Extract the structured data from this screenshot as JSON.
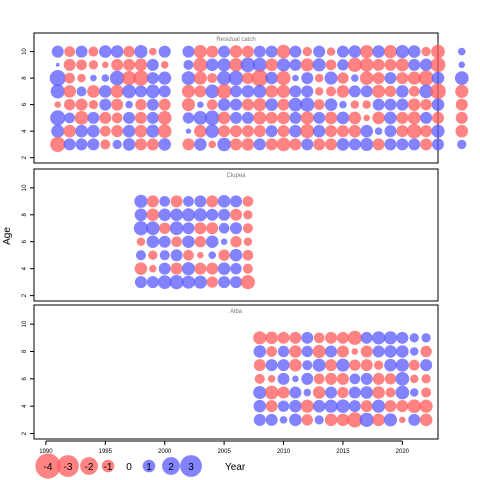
{
  "chart_data": {
    "type": "scatter",
    "xlabel": "Year",
    "ylabel": "Age",
    "x_ticks": [
      1990,
      1995,
      2000,
      2005,
      2010,
      2015,
      2020
    ],
    "y_ticks": [
      2,
      4,
      6,
      8,
      10
    ],
    "xlim": [
      1989,
      2023
    ],
    "ylim": [
      1.6,
      11.4
    ],
    "colors": {
      "negative": "#ff5a5a",
      "positive": "#5a5aff"
    },
    "legend": {
      "labels": [
        "-4",
        "-3",
        "-2",
        "-1",
        "0",
        "1",
        "2",
        "3"
      ],
      "values": [
        -4,
        -3,
        -2,
        -1,
        0,
        1,
        2,
        3
      ],
      "title": "Year"
    },
    "panels": [
      {
        "title": "Residual catch",
        "x_start": 1990,
        "ages": [
          10,
          9,
          8,
          7,
          6,
          5,
          4,
          3
        ],
        "values": [
          [
            0,
            1,
            -0.8,
            1,
            -0.7,
            1.1,
            1.1,
            -0.9,
            1.2,
            -0.4,
            1,
            0,
            1,
            -1.2,
            -1,
            1,
            -1.1,
            -1,
            1,
            1,
            -1.3,
            1,
            -0.6,
            1,
            -0.5,
            1,
            1.1,
            -1.2,
            1.1,
            -1.2,
            1.2,
            1.1,
            -0.6,
            -1.3,
            0,
            0.4
          ],
          [
            0,
            0.1,
            -1,
            -0.8,
            -0.6,
            -0.3,
            -1,
            -1,
            -1.1,
            1,
            -0.4,
            0,
            0.7,
            -1.4,
            1.1,
            1.2,
            -1.3,
            1.5,
            1.4,
            -1.1,
            1.2,
            1,
            -1.2,
            1.2,
            -0.8,
            0.9,
            -1.4,
            -1.3,
            -1,
            -1,
            -1.2,
            1,
            1.1,
            -1.5,
            0,
            0.3
          ],
          [
            0,
            1.8,
            -0.8,
            -0.5,
            0.3,
            0.4,
            1.5,
            -1.4,
            -1.6,
            1,
            1.2,
            0,
            1.3,
            -1.2,
            -0.7,
            1.4,
            1.5,
            -1,
            -1.9,
            1.1,
            -1.4,
            0.3,
            1,
            -0.5,
            1.2,
            -0.9,
            0.4,
            -1.3,
            -1,
            1,
            -1,
            -1.2,
            -1.6,
            1.1,
            0,
            1.3
          ],
          [
            0,
            1.4,
            -1.1,
            0.7,
            -1.1,
            1.1,
            -1.2,
            1.3,
            1,
            1.3,
            1,
            0,
            -1.2,
            -1,
            1.3,
            -1.5,
            1,
            1.1,
            1.2,
            -1.1,
            -1.2,
            1,
            1,
            -0.5,
            -0.7,
            -1.1,
            1,
            1,
            -1.2,
            -0.9,
            1.1,
            -0.8,
            1.3,
            -1.7,
            0,
            -1.2
          ],
          [
            0,
            -0.3,
            -0.9,
            -1,
            -0.6,
            1,
            -1,
            0.4,
            -0.9,
            1,
            -1,
            0,
            -1.2,
            0.3,
            -0.8,
            1.1,
            1,
            -1,
            -1.2,
            1.1,
            -1,
            1.3,
            1.4,
            -0.8,
            1.1,
            0.4,
            -0.5,
            -0.5,
            1,
            1,
            1,
            -1.1,
            -0.9,
            1.1,
            0,
            -1
          ],
          [
            0,
            1.6,
            0.8,
            -1.3,
            1,
            -1,
            -0.8,
            1,
            -1,
            1,
            -1.3,
            0,
            0.9,
            1.3,
            1.5,
            -1.1,
            1,
            1,
            -1.2,
            -1,
            -1.1,
            1,
            -1.2,
            1,
            -1.1,
            1.1,
            -1.1,
            -0.3,
            -1.1,
            1.1,
            -1,
            -1.2,
            1,
            -1,
            0,
            -1
          ],
          [
            0,
            1.2,
            -1.1,
            1.1,
            1.1,
            -0.8,
            -1,
            1.1,
            -1.1,
            1.2,
            -1.3,
            0,
            0.2,
            -1.1,
            1.3,
            -1,
            -1,
            -1,
            -1,
            1,
            -1,
            1.1,
            -1.4,
            1.1,
            -1,
            -1,
            -1.1,
            1.1,
            0.4,
            1,
            -1,
            -1.5,
            -1,
            1.2,
            0,
            -1.1
          ],
          [
            0,
            -1.6,
            1,
            1,
            1,
            -0.7,
            0.6,
            1.1,
            -1,
            -1,
            1.1,
            0,
            -1,
            1.1,
            -0.4,
            1.3,
            -1,
            -1.1,
            1,
            -1,
            -1.3,
            -1,
            1,
            -1,
            -1,
            1.1,
            1,
            1.2,
            -1,
            1,
            1,
            1,
            -1,
            1,
            0,
            0.6
          ]
        ]
      },
      {
        "title": "Clupea",
        "x_start": 1998,
        "ages": [
          9,
          8,
          7,
          6,
          5,
          4,
          3
        ],
        "values": [
          [
            1.2,
            -1,
            0.8,
            -1,
            0.8,
            1,
            -1,
            1.1,
            1,
            -0.8
          ],
          [
            1.1,
            -1.1,
            1.1,
            1.1,
            1.2,
            1.2,
            1,
            1,
            -1,
            -0.6
          ],
          [
            1.4,
            1.3,
            -0.9,
            1.3,
            1,
            -1,
            -1,
            0.8,
            1,
            -0.7
          ],
          [
            -0.5,
            1.1,
            1,
            -0.8,
            1.1,
            -0.9,
            1.1,
            0.3,
            -0.9,
            -0.5
          ],
          [
            0.7,
            -0.6,
            0.7,
            1,
            -0.8,
            -0.3,
            0.4,
            -0.9,
            1.1,
            -0.8
          ],
          [
            -1.1,
            -0.4,
            1,
            -1,
            1.2,
            -1,
            -1,
            1.1,
            0.9,
            -0.7
          ],
          [
            1,
            1,
            1.3,
            1.4,
            1.2,
            1.2,
            -0.9,
            1,
            1,
            -1.4
          ]
        ]
      },
      {
        "title": "Alba",
        "x_start": 2008,
        "ages": [
          9,
          8,
          7,
          6,
          5,
          4,
          3
        ],
        "values": [
          [
            -1.2,
            -1.1,
            -1,
            -1,
            1,
            -0.8,
            -1,
            -1,
            -1.4,
            1,
            1.2,
            1.2,
            1,
            0.6,
            0.6
          ],
          [
            1.1,
            -0.8,
            0.9,
            -1.1,
            0.9,
            -1.2,
            1,
            -1,
            -0.3,
            -1,
            1,
            1.1,
            1.1,
            0.5,
            -0.9
          ],
          [
            -1,
            1,
            1,
            -1.1,
            0.7,
            1.2,
            -1,
            1.2,
            -0.9,
            -1,
            -0.6,
            1.1,
            1.2,
            -0.8,
            1
          ],
          [
            -0.7,
            -0.4,
            1,
            0.3,
            1,
            -0.8,
            -1,
            -1,
            0.8,
            1,
            -1,
            -0.9,
            1.3,
            -0.5,
            -0.6
          ],
          [
            1.2,
            -1.3,
            -1,
            1,
            0.4,
            -1.1,
            1,
            -0.9,
            1,
            1.1,
            -1.1,
            -0.7,
            1.3,
            0.5,
            -0.7
          ],
          [
            1.1,
            -1,
            0.9,
            1.1,
            -1.2,
            1.1,
            1.2,
            1.3,
            1,
            -1,
            1.2,
            -1,
            -1,
            -1.3,
            -1.2
          ],
          [
            1,
            1,
            0.4,
            1.1,
            -0.9,
            0.6,
            -1.1,
            -1.1,
            -1.6,
            1.4,
            -1.1,
            1.2,
            -0.3,
            1,
            -1.1
          ]
        ]
      }
    ]
  }
}
